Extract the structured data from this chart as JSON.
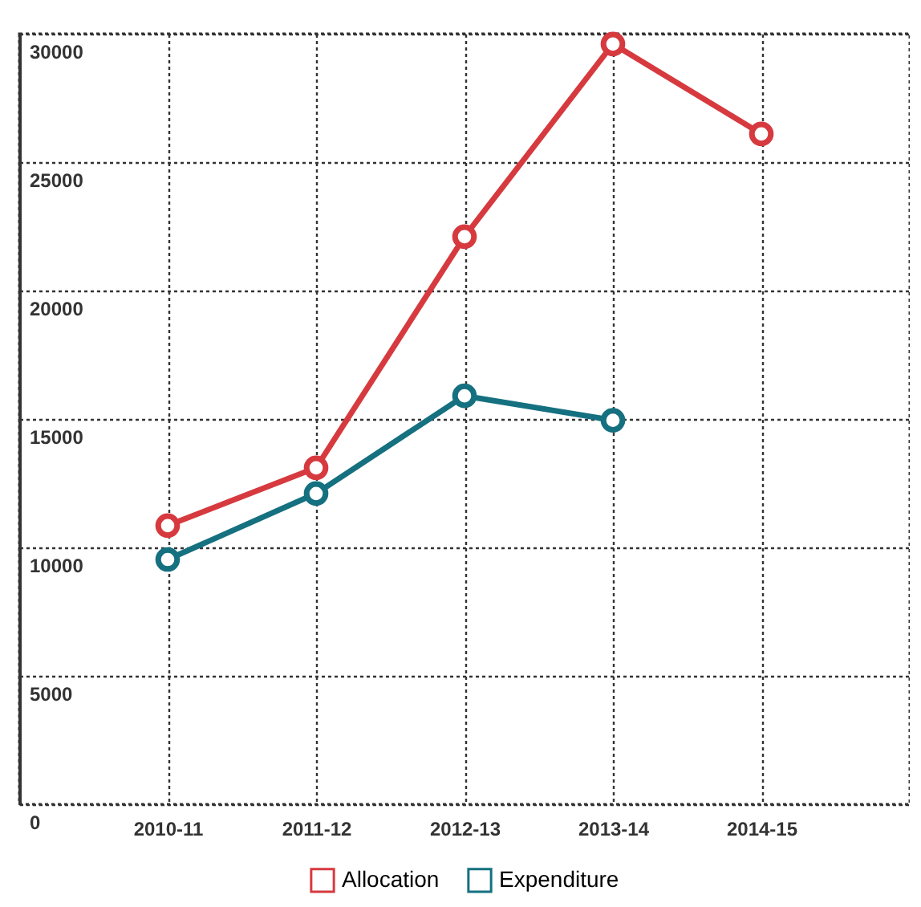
{
  "chart_data": {
    "type": "line",
    "categories": [
      "2010-11",
      "2011-12",
      "2012-13",
      "2013-14",
      "2014-15"
    ],
    "series": [
      {
        "name": "Allocation",
        "color": "#d63a3f",
        "values": [
          10850,
          13100,
          22100,
          29600,
          26100
        ]
      },
      {
        "name": "Expenditure",
        "color": "#157080",
        "values": [
          9530,
          12100,
          15900,
          14950,
          null
        ]
      }
    ],
    "ylim": [
      0,
      30000
    ],
    "yticks": [
      0,
      5000,
      10000,
      15000,
      20000,
      25000,
      30000
    ],
    "grid": true,
    "legend": "bottom",
    "marker": "circle",
    "line_style": "solid"
  }
}
